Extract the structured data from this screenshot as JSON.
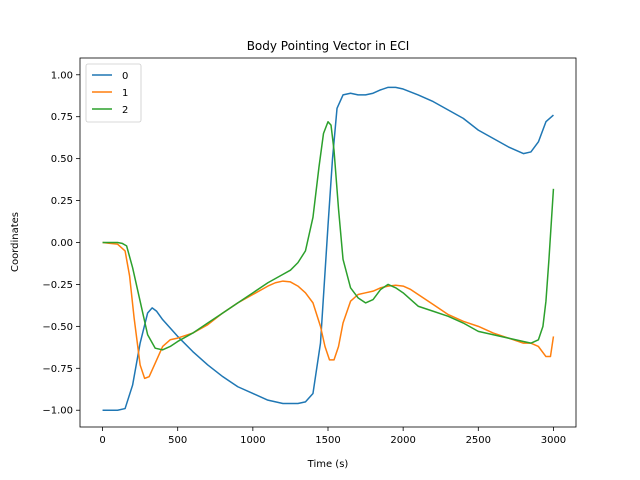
{
  "chart_data": {
    "type": "line",
    "title": "Body Pointing Vector in ECI",
    "xlabel": "Time (s)",
    "ylabel": "Coordinates",
    "xlim": [
      -150,
      3150
    ],
    "ylim": [
      -1.1,
      1.1
    ],
    "xticks": [
      0,
      500,
      1000,
      1500,
      2000,
      2500,
      3000
    ],
    "xtick_labels": [
      "0",
      "500",
      "1000",
      "1500",
      "2000",
      "2500",
      "3000"
    ],
    "yticks": [
      -1.0,
      -0.75,
      -0.5,
      -0.25,
      0.0,
      0.25,
      0.5,
      0.75,
      1.0
    ],
    "ytick_labels": [
      "−1.00",
      "−0.75",
      "−0.50",
      "−0.25",
      "0.00",
      "0.25",
      "0.50",
      "0.75",
      "1.00"
    ],
    "grid": false,
    "legend_position": "top-left",
    "series": [
      {
        "name": "0",
        "color": "#1f77b4",
        "x": [
          0,
          100,
          150,
          200,
          250,
          300,
          330,
          360,
          400,
          500,
          600,
          700,
          800,
          900,
          1000,
          1100,
          1200,
          1300,
          1350,
          1400,
          1450,
          1500,
          1530,
          1560,
          1600,
          1650,
          1700,
          1750,
          1800,
          1850,
          1900,
          1950,
          2000,
          2100,
          2200,
          2300,
          2400,
          2500,
          2600,
          2700,
          2800,
          2850,
          2900,
          2950,
          3000
        ],
        "values": [
          -1.0,
          -1.0,
          -0.99,
          -0.85,
          -0.6,
          -0.42,
          -0.39,
          -0.41,
          -0.46,
          -0.56,
          -0.65,
          -0.73,
          -0.8,
          -0.86,
          -0.9,
          -0.94,
          -0.96,
          -0.96,
          -0.95,
          -0.9,
          -0.6,
          0.1,
          0.5,
          0.8,
          0.88,
          0.89,
          0.88,
          0.88,
          0.89,
          0.91,
          0.925,
          0.925,
          0.915,
          0.88,
          0.84,
          0.79,
          0.74,
          0.67,
          0.62,
          0.57,
          0.53,
          0.54,
          0.6,
          0.72,
          0.76
        ]
      },
      {
        "name": "1",
        "color": "#ff7f0e",
        "x": [
          0,
          50,
          100,
          150,
          180,
          210,
          250,
          280,
          310,
          350,
          400,
          450,
          500,
          600,
          700,
          800,
          900,
          1000,
          1100,
          1150,
          1200,
          1250,
          1300,
          1350,
          1400,
          1450,
          1480,
          1510,
          1540,
          1570,
          1600,
          1650,
          1700,
          1750,
          1800,
          1850,
          1900,
          1950,
          2000,
          2050,
          2100,
          2200,
          2300,
          2400,
          2500,
          2600,
          2700,
          2800,
          2850,
          2900,
          2950,
          2980,
          3000
        ],
        "values": [
          0.0,
          -0.005,
          -0.01,
          -0.05,
          -0.2,
          -0.45,
          -0.73,
          -0.81,
          -0.8,
          -0.72,
          -0.62,
          -0.58,
          -0.57,
          -0.54,
          -0.49,
          -0.42,
          -0.36,
          -0.31,
          -0.26,
          -0.24,
          -0.23,
          -0.235,
          -0.26,
          -0.3,
          -0.36,
          -0.5,
          -0.62,
          -0.7,
          -0.7,
          -0.62,
          -0.48,
          -0.35,
          -0.31,
          -0.3,
          -0.29,
          -0.27,
          -0.26,
          -0.255,
          -0.26,
          -0.28,
          -0.31,
          -0.37,
          -0.43,
          -0.47,
          -0.5,
          -0.54,
          -0.57,
          -0.6,
          -0.6,
          -0.62,
          -0.68,
          -0.68,
          -0.56
        ]
      },
      {
        "name": "2",
        "color": "#2ca02c",
        "x": [
          0,
          50,
          100,
          130,
          160,
          200,
          250,
          300,
          350,
          400,
          450,
          500,
          600,
          700,
          800,
          900,
          1000,
          1100,
          1200,
          1250,
          1300,
          1350,
          1400,
          1440,
          1470,
          1500,
          1520,
          1540,
          1570,
          1600,
          1650,
          1700,
          1750,
          1800,
          1850,
          1900,
          1950,
          2000,
          2100,
          2200,
          2300,
          2400,
          2500,
          2600,
          2700,
          2800,
          2850,
          2900,
          2930,
          2950,
          2970,
          3000
        ],
        "values": [
          0.0,
          0.0,
          0.0,
          -0.005,
          -0.02,
          -0.15,
          -0.35,
          -0.55,
          -0.63,
          -0.64,
          -0.62,
          -0.59,
          -0.54,
          -0.48,
          -0.42,
          -0.36,
          -0.3,
          -0.24,
          -0.19,
          -0.165,
          -0.12,
          -0.05,
          0.15,
          0.45,
          0.65,
          0.72,
          0.7,
          0.55,
          0.2,
          -0.1,
          -0.27,
          -0.33,
          -0.36,
          -0.34,
          -0.28,
          -0.25,
          -0.27,
          -0.3,
          -0.38,
          -0.41,
          -0.44,
          -0.48,
          -0.53,
          -0.55,
          -0.57,
          -0.59,
          -0.6,
          -0.58,
          -0.5,
          -0.35,
          -0.1,
          0.32
        ]
      }
    ]
  }
}
